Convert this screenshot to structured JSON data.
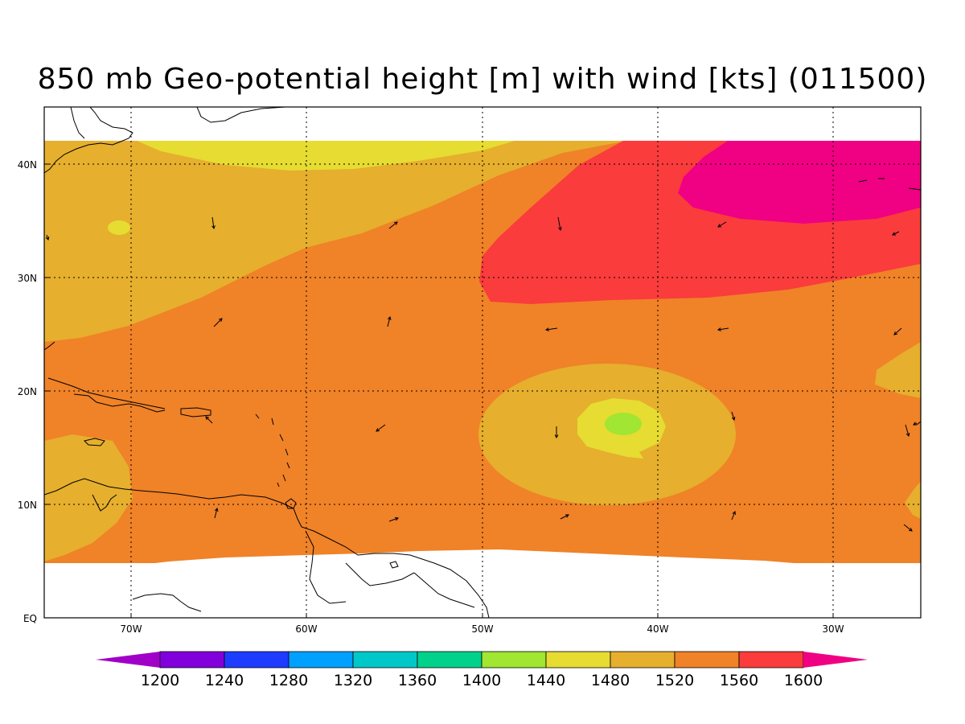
{
  "title": "850 mb Geo-potential height [m] with wind [kts] (011500)",
  "map": {
    "lon_range": [
      -75,
      -25
    ],
    "lat_range": [
      0,
      45
    ],
    "lon_ticks": [
      {
        "value": -70,
        "label": "70W"
      },
      {
        "value": -60,
        "label": "60W"
      },
      {
        "value": -50,
        "label": "50W"
      },
      {
        "value": -40,
        "label": "40W"
      },
      {
        "value": -30,
        "label": "30W"
      }
    ],
    "lat_ticks": [
      {
        "value": 0,
        "label": "EQ"
      },
      {
        "value": 10,
        "label": "10N"
      },
      {
        "value": 20,
        "label": "20N"
      },
      {
        "value": 30,
        "label": "30N"
      },
      {
        "value": 40,
        "label": "40N"
      }
    ],
    "grid": true
  },
  "colorbar": {
    "levels": [
      "1200",
      "1240",
      "1280",
      "1320",
      "1360",
      "1400",
      "1440",
      "1480",
      "1520",
      "1560",
      "1600"
    ],
    "colors": [
      "#a000c8",
      "#8200dc",
      "#1e3cff",
      "#00a0ff",
      "#00c8c8",
      "#00d28c",
      "#a0e632",
      "#e6dc32",
      "#e6af2d",
      "#f08228",
      "#fa3c3c",
      "#f00082"
    ]
  }
}
